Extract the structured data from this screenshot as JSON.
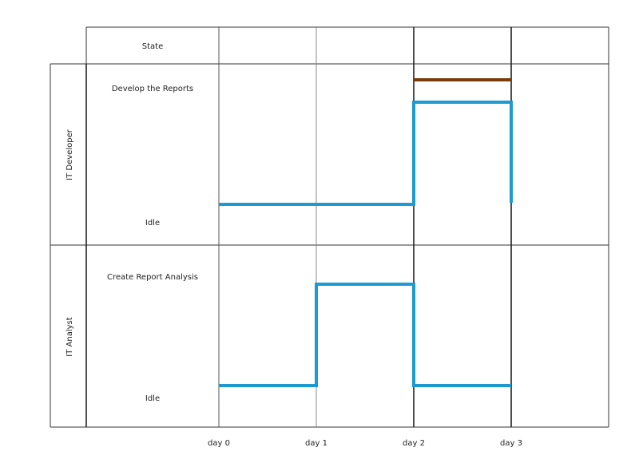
{
  "header": {
    "state_label": "State"
  },
  "lanes": [
    {
      "name": "IT Developer",
      "states": [
        "Develop the Reports",
        "Idle"
      ],
      "timeline": [
        {
          "from": 0,
          "to": 2,
          "state": "Idle"
        },
        {
          "from": 2,
          "to": 3,
          "state": "Develop the Reports"
        }
      ],
      "constraint": {
        "from": 2,
        "to": 3,
        "state": "Develop the Reports"
      }
    },
    {
      "name": "IT Analyst",
      "states": [
        "Create Report Analysis",
        "Idle"
      ],
      "timeline": [
        {
          "from": 0,
          "to": 1,
          "state": "Idle"
        },
        {
          "from": 1,
          "to": 2,
          "state": "Create Report Analysis"
        },
        {
          "from": 2,
          "to": 3,
          "state": "Idle"
        }
      ]
    }
  ],
  "time_axis": {
    "ticks": [
      {
        "value": 0,
        "label": "day 0"
      },
      {
        "value": 1,
        "label": "day 1"
      },
      {
        "value": 2,
        "label": "day 2"
      },
      {
        "value": 3,
        "label": "day 3"
      }
    ]
  },
  "colors": {
    "line": "#1d9bd1",
    "constraint": "#7a3b0a",
    "grid": "#333333",
    "thin_grid": "#888888"
  }
}
